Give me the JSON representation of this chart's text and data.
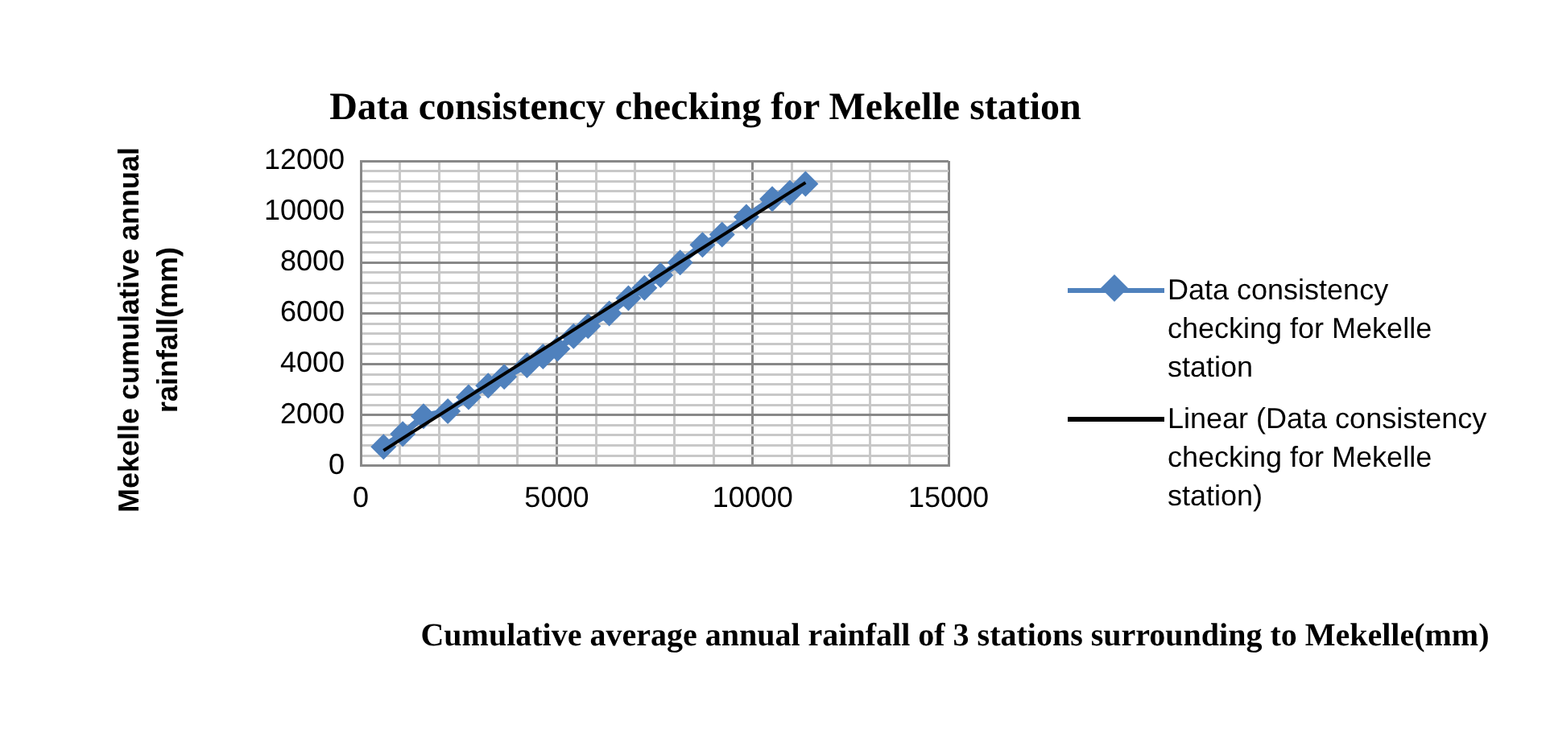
{
  "chart_data": {
    "type": "scatter",
    "title": "Data consistency checking for Mekelle station",
    "xlabel": "Cumulative average annual rainfall of 3 stations surrounding to Mekelle(mm)",
    "ylabel": "Mekelle cumulative annual rainfall(mm)",
    "series": [
      {
        "name": "Data consistency checking for Mekelle station",
        "type": "line",
        "marker": "diamond",
        "color": "#4f81bd",
        "x": [
          580,
          1070,
          1600,
          2220,
          2750,
          3250,
          3660,
          4240,
          4650,
          5020,
          5430,
          5800,
          6340,
          6830,
          7240,
          7650,
          8150,
          8720,
          9220,
          9840,
          10500,
          10950,
          11350
        ],
        "values": [
          750,
          1250,
          1950,
          2150,
          2700,
          3150,
          3500,
          3950,
          4300,
          4600,
          5100,
          5500,
          6000,
          6600,
          7000,
          7500,
          8000,
          8700,
          9100,
          9800,
          10500,
          10750,
          11100
        ]
      },
      {
        "name": "Linear (Data consistency checking for Mekelle station)",
        "type": "line",
        "marker": "none",
        "color": "#000000",
        "x": [
          580,
          11350
        ],
        "values": [
          600,
          11150
        ]
      }
    ],
    "xlim": [
      0,
      15000
    ],
    "ylim": [
      0,
      12000
    ],
    "xticks": [
      0,
      {
        "value": 1000,
        "label": null
      },
      {
        "value": 2000,
        "label": null
      },
      {
        "value": 3000,
        "label": null
      },
      {
        "value": 4000,
        "label": null
      },
      5000,
      {
        "value": 6000,
        "label": null
      },
      {
        "value": 7000,
        "label": null
      },
      {
        "value": 8000,
        "label": null
      },
      {
        "value": 9000,
        "label": null
      },
      10000,
      {
        "value": 11000,
        "label": null
      },
      {
        "value": 12000,
        "label": null
      },
      {
        "value": 13000,
        "label": null
      },
      {
        "value": 14000,
        "label": null
      },
      15000
    ],
    "yticks": [
      0,
      {
        "value": 400,
        "label": null
      },
      {
        "value": 800,
        "label": null
      },
      {
        "value": 1200,
        "label": null
      },
      {
        "value": 1600,
        "label": null
      },
      2000,
      {
        "value": 2400,
        "label": null
      },
      {
        "value": 2800,
        "label": null
      },
      {
        "value": 3200,
        "label": null
      },
      {
        "value": 3600,
        "label": null
      },
      4000,
      {
        "value": 4400,
        "label": null
      },
      {
        "value": 4800,
        "label": null
      },
      {
        "value": 5200,
        "label": null
      },
      {
        "value": 5600,
        "label": null
      },
      6000,
      {
        "value": 6400,
        "label": null
      },
      {
        "value": 6800,
        "label": null
      },
      {
        "value": 7200,
        "label": null
      },
      {
        "value": 7600,
        "label": null
      },
      8000,
      {
        "value": 8400,
        "label": null
      },
      {
        "value": 8800,
        "label": null
      },
      {
        "value": 9200,
        "label": null
      },
      {
        "value": 9600,
        "label": null
      },
      10000,
      {
        "value": 10400,
        "label": null
      },
      {
        "value": 10800,
        "label": null
      },
      {
        "value": 11200,
        "label": null
      },
      {
        "value": 11600,
        "label": null
      },
      12000
    ],
    "grid": true,
    "legend": "right"
  }
}
